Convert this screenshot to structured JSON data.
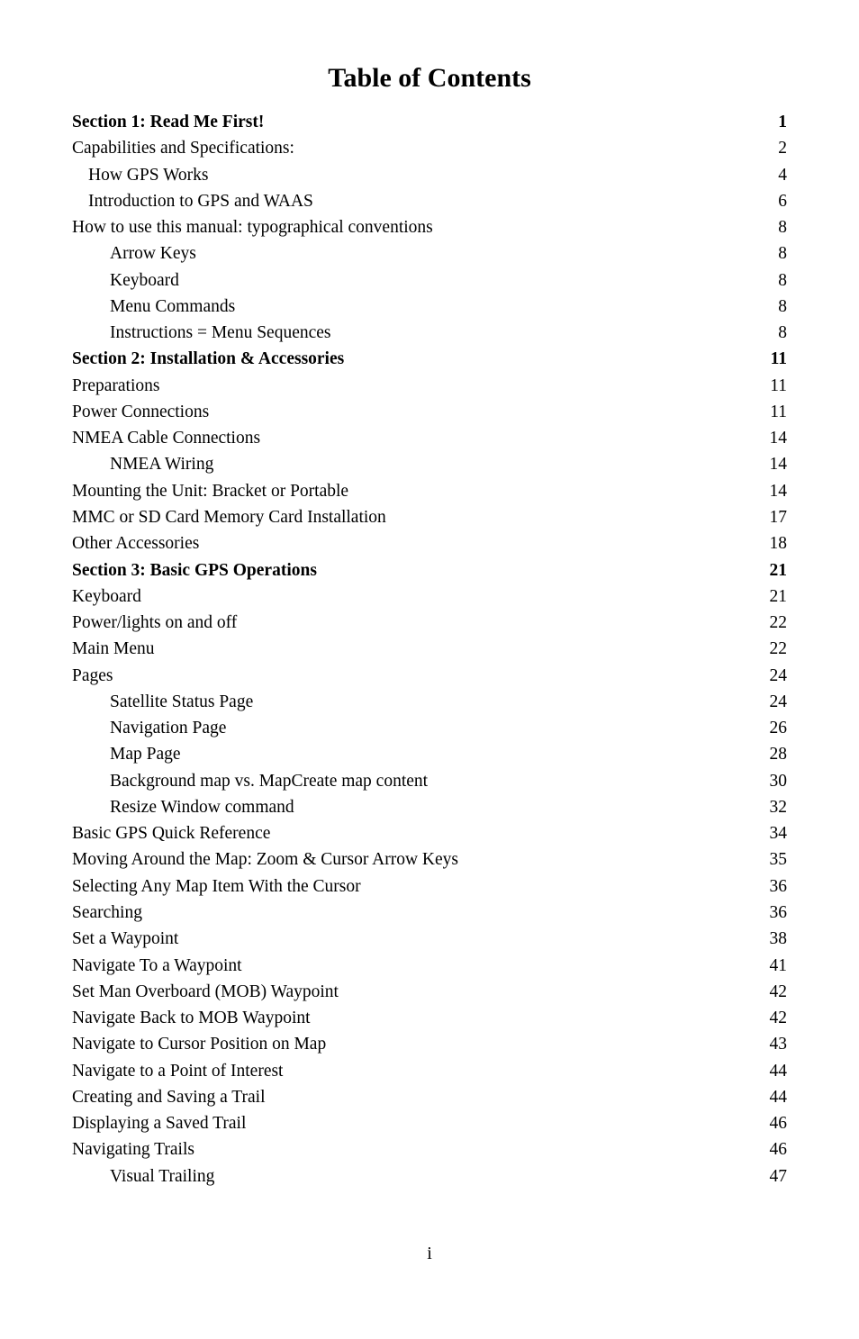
{
  "title": "Table of Contents",
  "page_number": "i",
  "style": {
    "background_color": "#ffffff",
    "text_color": "#000000",
    "title_fontsize_pt": 22,
    "body_fontsize_pt": 14,
    "font_family": "Century Schoolbook",
    "leader_char": "."
  },
  "entries": [
    {
      "label": "Section 1: Read Me First!",
      "page": "1",
      "bold": true,
      "indent": 0
    },
    {
      "label": "Capabilities and Specifications:",
      "page": "2",
      "bold": false,
      "indent": 0
    },
    {
      "label": "How GPS Works",
      "page": "4",
      "bold": false,
      "indent": 1
    },
    {
      "label": "Introduction to GPS and WAAS",
      "page": "6",
      "bold": false,
      "indent": 1
    },
    {
      "label": "How to use this manual: typographical conventions",
      "page": "8",
      "bold": false,
      "indent": 0
    },
    {
      "label": "Arrow Keys",
      "page": "8",
      "bold": false,
      "indent": 2
    },
    {
      "label": "Keyboard",
      "page": "8",
      "bold": false,
      "indent": 2
    },
    {
      "label": "Menu Commands",
      "page": "8",
      "bold": false,
      "indent": 2
    },
    {
      "label": "Instructions = Menu Sequences",
      "page": "8",
      "bold": false,
      "indent": 2
    },
    {
      "label": "Section 2:  Installation & Accessories",
      "page": "11",
      "bold": true,
      "indent": 0
    },
    {
      "label": "Preparations",
      "page": "11",
      "bold": false,
      "indent": 0
    },
    {
      "label": "Power Connections",
      "page": "11",
      "bold": false,
      "indent": 0
    },
    {
      "label": "NMEA Cable Connections",
      "page": "14",
      "bold": false,
      "indent": 0
    },
    {
      "label": "NMEA Wiring",
      "page": "14",
      "bold": false,
      "indent": 2
    },
    {
      "label": "Mounting the Unit: Bracket or Portable",
      "page": "14",
      "bold": false,
      "indent": 0
    },
    {
      "label": "MMC or SD Card Memory Card Installation",
      "page": "17",
      "bold": false,
      "indent": 0
    },
    {
      "label": "Other Accessories",
      "page": "18",
      "bold": false,
      "indent": 0
    },
    {
      "label": "Section 3: Basic GPS Operations",
      "page": "21",
      "bold": true,
      "indent": 0
    },
    {
      "label": "Keyboard",
      "page": "21",
      "bold": false,
      "indent": 0
    },
    {
      "label": "Power/lights on and off",
      "page": "22",
      "bold": false,
      "indent": 0
    },
    {
      "label": "Main Menu",
      "page": "22",
      "bold": false,
      "indent": 0
    },
    {
      "label": "Pages",
      "page": "24",
      "bold": false,
      "indent": 0
    },
    {
      "label": "Satellite Status Page",
      "page": "24",
      "bold": false,
      "indent": 2
    },
    {
      "label": "Navigation Page",
      "page": "26",
      "bold": false,
      "indent": 2
    },
    {
      "label": "Map Page",
      "page": "28",
      "bold": false,
      "indent": 2
    },
    {
      "label": "Background map vs. MapCreate map content",
      "page": "30",
      "bold": false,
      "indent": 2
    },
    {
      "label": "Resize Window command",
      "page": "32",
      "bold": false,
      "indent": 2
    },
    {
      "label": "Basic GPS Quick Reference",
      "page": "34",
      "bold": false,
      "indent": 0
    },
    {
      "label": "Moving Around the Map: Zoom & Cursor Arrow Keys",
      "page": "35",
      "bold": false,
      "indent": 0
    },
    {
      "label": "Selecting Any Map Item With the Cursor",
      "page": "36",
      "bold": false,
      "indent": 0
    },
    {
      "label": "Searching",
      "page": "36",
      "bold": false,
      "indent": 0
    },
    {
      "label": "Set a Waypoint",
      "page": "38",
      "bold": false,
      "indent": 0
    },
    {
      "label": "Navigate To a Waypoint",
      "page": "41",
      "bold": false,
      "indent": 0
    },
    {
      "label": "Set Man Overboard (MOB) Waypoint",
      "page": "42",
      "bold": false,
      "indent": 0
    },
    {
      "label": "Navigate Back to MOB Waypoint",
      "page": "42",
      "bold": false,
      "indent": 0
    },
    {
      "label": "Navigate to Cursor Position on Map",
      "page": "43",
      "bold": false,
      "indent": 0
    },
    {
      "label": "Navigate to a Point of Interest",
      "page": "44",
      "bold": false,
      "indent": 0
    },
    {
      "label": "Creating and Saving a Trail",
      "page": "44",
      "bold": false,
      "indent": 0
    },
    {
      "label": "Displaying a Saved Trail",
      "page": "46",
      "bold": false,
      "indent": 0
    },
    {
      "label": "Navigating Trails",
      "page": "46",
      "bold": false,
      "indent": 0
    },
    {
      "label": "Visual Trailing",
      "page": "47",
      "bold": false,
      "indent": 2
    }
  ]
}
